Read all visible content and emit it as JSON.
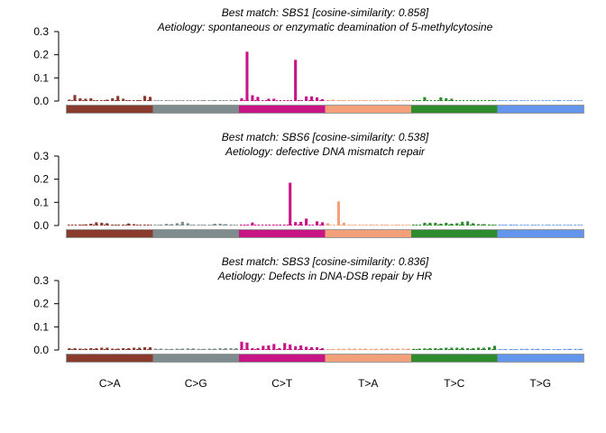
{
  "chart_data": {
    "type": "bar",
    "mutation_classes": [
      {
        "label": "C>A",
        "color": "#8B3A2E"
      },
      {
        "label": "C>G",
        "color": "#7F8C8D"
      },
      {
        "label": "C>T",
        "color": "#C71585"
      },
      {
        "label": "T>A",
        "color": "#F4A07A"
      },
      {
        "label": "T>C",
        "color": "#2E8B2E"
      },
      {
        "label": "T>G",
        "color": "#6495ED"
      }
    ],
    "bins_per_class": 16,
    "panels": [
      {
        "title_line1": "Best match: SBS1 [cosine-similarity: 0.858]",
        "title_line2": "Aetiology: spontaneous or enzymatic deamination of 5-methylcytosine",
        "yticks": [
          "0.0",
          "0.1",
          "0.2",
          "0.3"
        ],
        "ylim": [
          0,
          0.3
        ],
        "values": [
          0.006,
          0.026,
          0.012,
          0.01,
          0.012,
          0.003,
          0.003,
          0.006,
          0.012,
          0.022,
          0.01,
          0.003,
          0.002,
          0.004,
          0.022,
          0.018,
          0.002,
          0.002,
          0.003,
          0.002,
          0.003,
          0.002,
          0.002,
          0.001,
          0.002,
          0.004,
          0.003,
          0.004,
          0.003,
          0.002,
          0.003,
          0.004,
          0.012,
          0.213,
          0.025,
          0.018,
          0.002,
          0.01,
          0.01,
          0.001,
          0.002,
          0.002,
          0.178,
          0.003,
          0.02,
          0.02,
          0.016,
          0.008,
          0.004,
          0.006,
          0.004,
          0.004,
          0.002,
          0.001,
          0.002,
          0.003,
          0.001,
          0.002,
          0.004,
          0.003,
          0.001,
          0.004,
          0.002,
          0.002,
          0.002,
          0.004,
          0.017,
          0.001,
          0.002,
          0.016,
          0.012,
          0.01,
          0.001,
          0.001,
          0.001,
          0.002,
          0.002,
          0.001,
          0.004,
          0.003,
          0.003,
          0.002,
          0.004,
          0.003,
          0.002,
          0.001,
          0.001,
          0.001,
          0.002,
          0.002,
          0.003,
          0.004,
          0.001,
          0.002,
          0.003,
          0.002
        ]
      },
      {
        "title_line1": "Best match: SBS6 [cosine-similarity: 0.538]",
        "title_line2": "Aetiology: defective DNA mismatch repair",
        "yticks": [
          "0.0",
          "0.1",
          "0.2",
          "0.3"
        ],
        "ylim": [
          0,
          0.3
        ],
        "values": [
          0.002,
          0.002,
          0.004,
          0.005,
          0.008,
          0.014,
          0.012,
          0.01,
          0.004,
          0.003,
          0.004,
          0.009,
          0.006,
          0.002,
          0.003,
          0.002,
          0.002,
          0.004,
          0.007,
          0.006,
          0.01,
          0.016,
          0.01,
          0.003,
          0.003,
          0.003,
          0.003,
          0.008,
          0.008,
          0.006,
          0.004,
          0.002,
          0.002,
          0.003,
          0.013,
          0.002,
          0.001,
          0.002,
          0.003,
          0.002,
          0.003,
          0.185,
          0.015,
          0.016,
          0.03,
          0.002,
          0.018,
          0.014,
          0.01,
          0.001,
          0.104,
          0.012,
          0.003,
          0.002,
          0.002,
          0.002,
          0.004,
          0.002,
          0.004,
          0.003,
          0.002,
          0.003,
          0.002,
          0.002,
          0.003,
          0.002,
          0.012,
          0.012,
          0.012,
          0.008,
          0.012,
          0.008,
          0.01,
          0.016,
          0.018,
          0.01,
          0.006,
          0.006,
          0.004,
          0.003,
          0.003,
          0.003,
          0.004,
          0.003,
          0.002,
          0.002,
          0.003,
          0.002,
          0.001,
          0.003,
          0.002,
          0.002,
          0.002,
          0.002,
          0.002,
          0.002
        ]
      },
      {
        "title_line1": "Best match: SBS3 [cosine-similarity: 0.836]",
        "title_line2": "Aetiology: Defects in DNA-DSB repair by HR",
        "yticks": [
          "0.0",
          "0.1",
          "0.2",
          "0.3"
        ],
        "ylim": [
          0,
          0.3
        ],
        "values": [
          0.008,
          0.008,
          0.006,
          0.006,
          0.008,
          0.008,
          0.01,
          0.01,
          0.006,
          0.006,
          0.008,
          0.008,
          0.01,
          0.01,
          0.012,
          0.012,
          0.006,
          0.006,
          0.005,
          0.005,
          0.006,
          0.006,
          0.007,
          0.007,
          0.005,
          0.005,
          0.006,
          0.006,
          0.008,
          0.008,
          0.008,
          0.008,
          0.036,
          0.032,
          0.008,
          0.008,
          0.018,
          0.02,
          0.026,
          0.008,
          0.03,
          0.024,
          0.016,
          0.02,
          0.014,
          0.012,
          0.012,
          0.008,
          0.004,
          0.004,
          0.005,
          0.005,
          0.006,
          0.006,
          0.006,
          0.006,
          0.005,
          0.005,
          0.006,
          0.006,
          0.006,
          0.006,
          0.006,
          0.006,
          0.005,
          0.006,
          0.007,
          0.008,
          0.008,
          0.008,
          0.01,
          0.01,
          0.01,
          0.01,
          0.008,
          0.008,
          0.01,
          0.01,
          0.012,
          0.018,
          0.004,
          0.004,
          0.004,
          0.004,
          0.005,
          0.005,
          0.005,
          0.005,
          0.004,
          0.004,
          0.004,
          0.004,
          0.005,
          0.005,
          0.005,
          0.005
        ]
      }
    ]
  }
}
